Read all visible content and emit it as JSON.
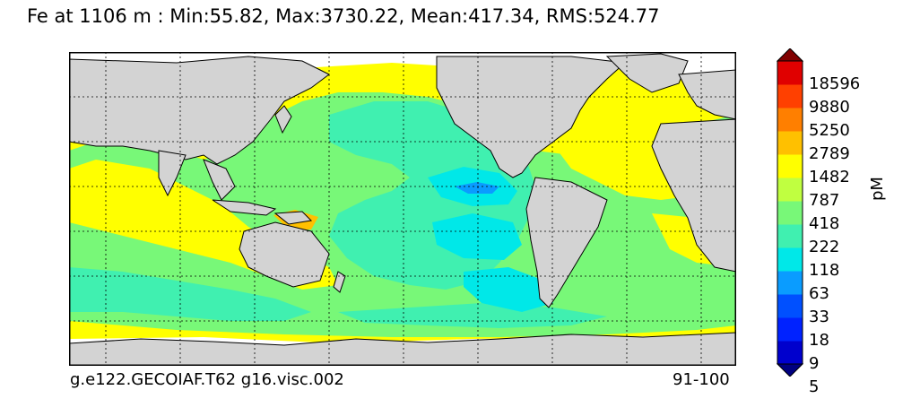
{
  "title": "Fe at 1106 m : Min:55.82, Max:3730.22, Mean:417.34, RMS:524.77",
  "footer": {
    "left": "g.e122.GECOIAF.T62 g16.visc.002",
    "right": "91-100"
  },
  "colorbar": {
    "unit": "pM",
    "levels": [
      "18596",
      "9880",
      "5250",
      "2789",
      "1482",
      "787",
      "418",
      "222",
      "118",
      "63",
      "33",
      "18",
      "9",
      "5"
    ],
    "colors": [
      "#000080",
      "#0000cd",
      "#0022ff",
      "#0050ff",
      "#0a9cff",
      "#00e8e8",
      "#40f0b0",
      "#78f878",
      "#c0ff40",
      "#ffff00",
      "#ffc000",
      "#ff7f00",
      "#ff4000",
      "#e00000",
      "#800000"
    ]
  },
  "map": {
    "land_color": "#d3d3d3",
    "no_data_color": "#ffffff",
    "ocean_base_color": "#78f878"
  }
}
